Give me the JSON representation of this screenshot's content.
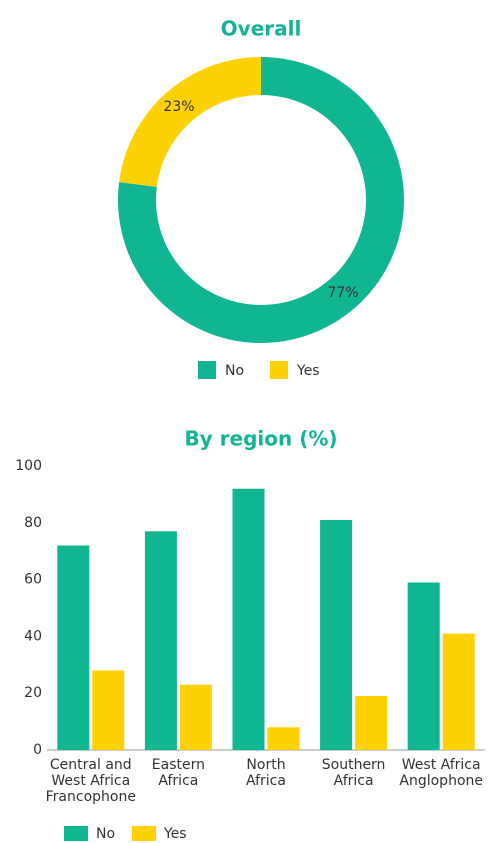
{
  "chart_data": [
    {
      "type": "donut",
      "title": "Overall",
      "categories": [
        "No",
        "Yes"
      ],
      "values": [
        77,
        23
      ],
      "value_labels": [
        "77%",
        "23%"
      ],
      "colors": [
        "#10b592",
        "#fdd104"
      ],
      "legend": "bottom"
    },
    {
      "type": "bar",
      "title": "By region (%)",
      "categories": [
        "Central and\nWest Africa\nFrancophone",
        "Eastern\nAfrica",
        "North\nAfrica",
        "Southern\nAfrica",
        "West Africa\nAnglophone"
      ],
      "series": [
        {
          "name": "No",
          "color": "#10b592",
          "values": [
            72,
            77,
            92,
            81,
            59
          ]
        },
        {
          "name": "Yes",
          "color": "#fdd104",
          "values": [
            28,
            23,
            8,
            19,
            41
          ]
        }
      ],
      "ylim": [
        0,
        100
      ],
      "yticks": [
        0,
        20,
        40,
        60,
        80,
        100
      ],
      "grid": false,
      "legend": "bottom-left"
    }
  ]
}
